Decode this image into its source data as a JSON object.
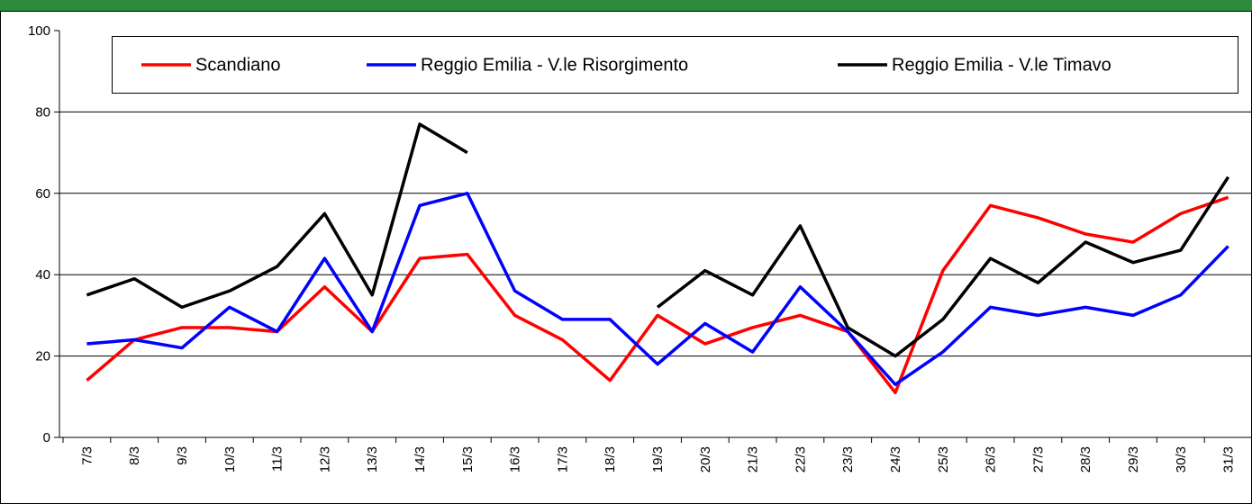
{
  "chart_data": {
    "type": "line",
    "categories": [
      "7/3",
      "8/3",
      "9/3",
      "10/3",
      "11/3",
      "12/3",
      "13/3",
      "14/3",
      "15/3",
      "16/3",
      "17/3",
      "18/3",
      "19/3",
      "20/3",
      "21/3",
      "22/3",
      "23/3",
      "24/3",
      "25/3",
      "26/3",
      "27/3",
      "28/3",
      "29/3",
      "30/3",
      "31/3"
    ],
    "series": [
      {
        "name": "Scandiano",
        "color": "#ff0000",
        "values": [
          14,
          24,
          27,
          27,
          26,
          37,
          26,
          44,
          45,
          30,
          24,
          14,
          30,
          23,
          27,
          30,
          26,
          11,
          41,
          57,
          54,
          50,
          48,
          55,
          59
        ]
      },
      {
        "name": "Reggio Emilia - V.le Risorgimento",
        "color": "#0000ff",
        "values": [
          23,
          24,
          22,
          32,
          26,
          44,
          26,
          57,
          60,
          36,
          29,
          29,
          18,
          28,
          21,
          37,
          26,
          13,
          21,
          32,
          30,
          32,
          30,
          35,
          47
        ]
      },
      {
        "name": "Reggio Emilia - V.le Timavo",
        "color": "#000000",
        "values": [
          35,
          39,
          32,
          36,
          42,
          55,
          35,
          77,
          70,
          null,
          null,
          null,
          32,
          41,
          35,
          52,
          27,
          20,
          29,
          44,
          38,
          48,
          43,
          46,
          64
        ]
      }
    ],
    "ylim": [
      0,
      100
    ],
    "yticks": [
      0,
      20,
      40,
      60,
      80,
      100
    ],
    "grid": true,
    "legend": "top"
  }
}
